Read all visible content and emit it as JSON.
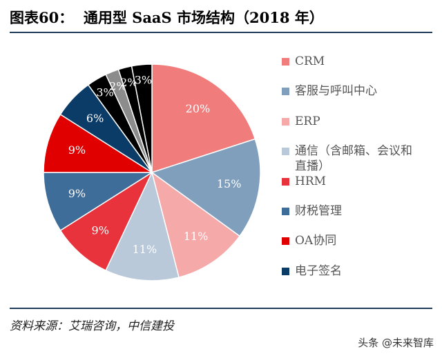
{
  "chart_data": {
    "type": "pie",
    "title": "图表60：  通用型 SaaS 市场结构（2018 年）",
    "categories": [
      "CRM",
      "客服与呼叫中心",
      "ERP",
      "通信（含邮箱、会议和直播）",
      "HRM",
      "财税管理",
      "OA协同",
      "电子签名",
      null,
      null,
      null,
      null
    ],
    "values": [
      20,
      15,
      11,
      11,
      9,
      9,
      9,
      6,
      3,
      2,
      2,
      3
    ],
    "value_labels": [
      "20%",
      "15%",
      "11%",
      "11%",
      "9%",
      "9%",
      "9%",
      "6%",
      "3%",
      "2%",
      "2%",
      "3%"
    ],
    "colors": [
      "#f07c7c",
      "#7f9fbd",
      "#f5a9a9",
      "#b9c9d9",
      "#e8323c",
      "#3f6d99",
      "#e00000",
      "#0b3c68",
      "#000000",
      "#8c8c8c",
      "#000000",
      "#000000"
    ],
    "source": "资料来源：艾瑞咨询，中信建投",
    "watermark": "头条 @未来智库"
  }
}
